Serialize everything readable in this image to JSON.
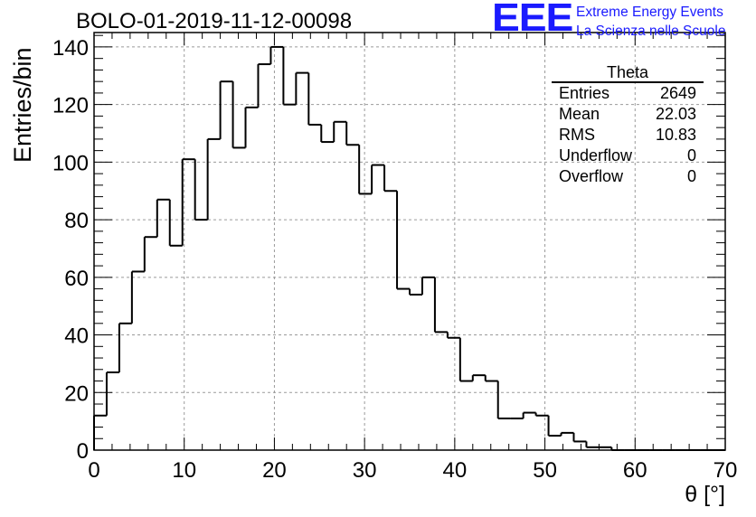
{
  "title": "BOLO-01-2019-11-12-00098",
  "logo": {
    "mark": "EEE",
    "line1": "Extreme Energy Events",
    "line2": "La Scienza nelle Scuole",
    "color": "#1a1aff"
  },
  "stats_box": {
    "title": "Theta",
    "rows": [
      {
        "label": "Entries",
        "value": "2649"
      },
      {
        "label": "Mean",
        "value": "22.03"
      },
      {
        "label": "RMS",
        "value": "10.83"
      },
      {
        "label": "Underflow",
        "value": "0"
      },
      {
        "label": "Overflow",
        "value": "0"
      }
    ]
  },
  "chart_data": {
    "type": "bar",
    "histogram": true,
    "title": "BOLO-01-2019-11-12-00098",
    "xlabel": "θ [°]",
    "ylabel": "Entries/bin",
    "xlim": [
      0,
      70
    ],
    "ylim": [
      0,
      145
    ],
    "x_ticks": [
      0,
      10,
      20,
      30,
      40,
      50,
      60,
      70
    ],
    "y_ticks": [
      0,
      20,
      40,
      60,
      80,
      100,
      120,
      140
    ],
    "grid": true,
    "bin_width": 1.4,
    "values": [
      12,
      27,
      44,
      62,
      74,
      87,
      71,
      101,
      80,
      108,
      128,
      105,
      119,
      134,
      140,
      120,
      131,
      113,
      107,
      114,
      106,
      89,
      99,
      90,
      56,
      54,
      60,
      41,
      39,
      24,
      26,
      24,
      11,
      11,
      13,
      12,
      5,
      6,
      3,
      1,
      1,
      0,
      0,
      0,
      0,
      0,
      0,
      0,
      0,
      0
    ],
    "line_color": "#000000",
    "grid_color": "#9a9a9a"
  }
}
